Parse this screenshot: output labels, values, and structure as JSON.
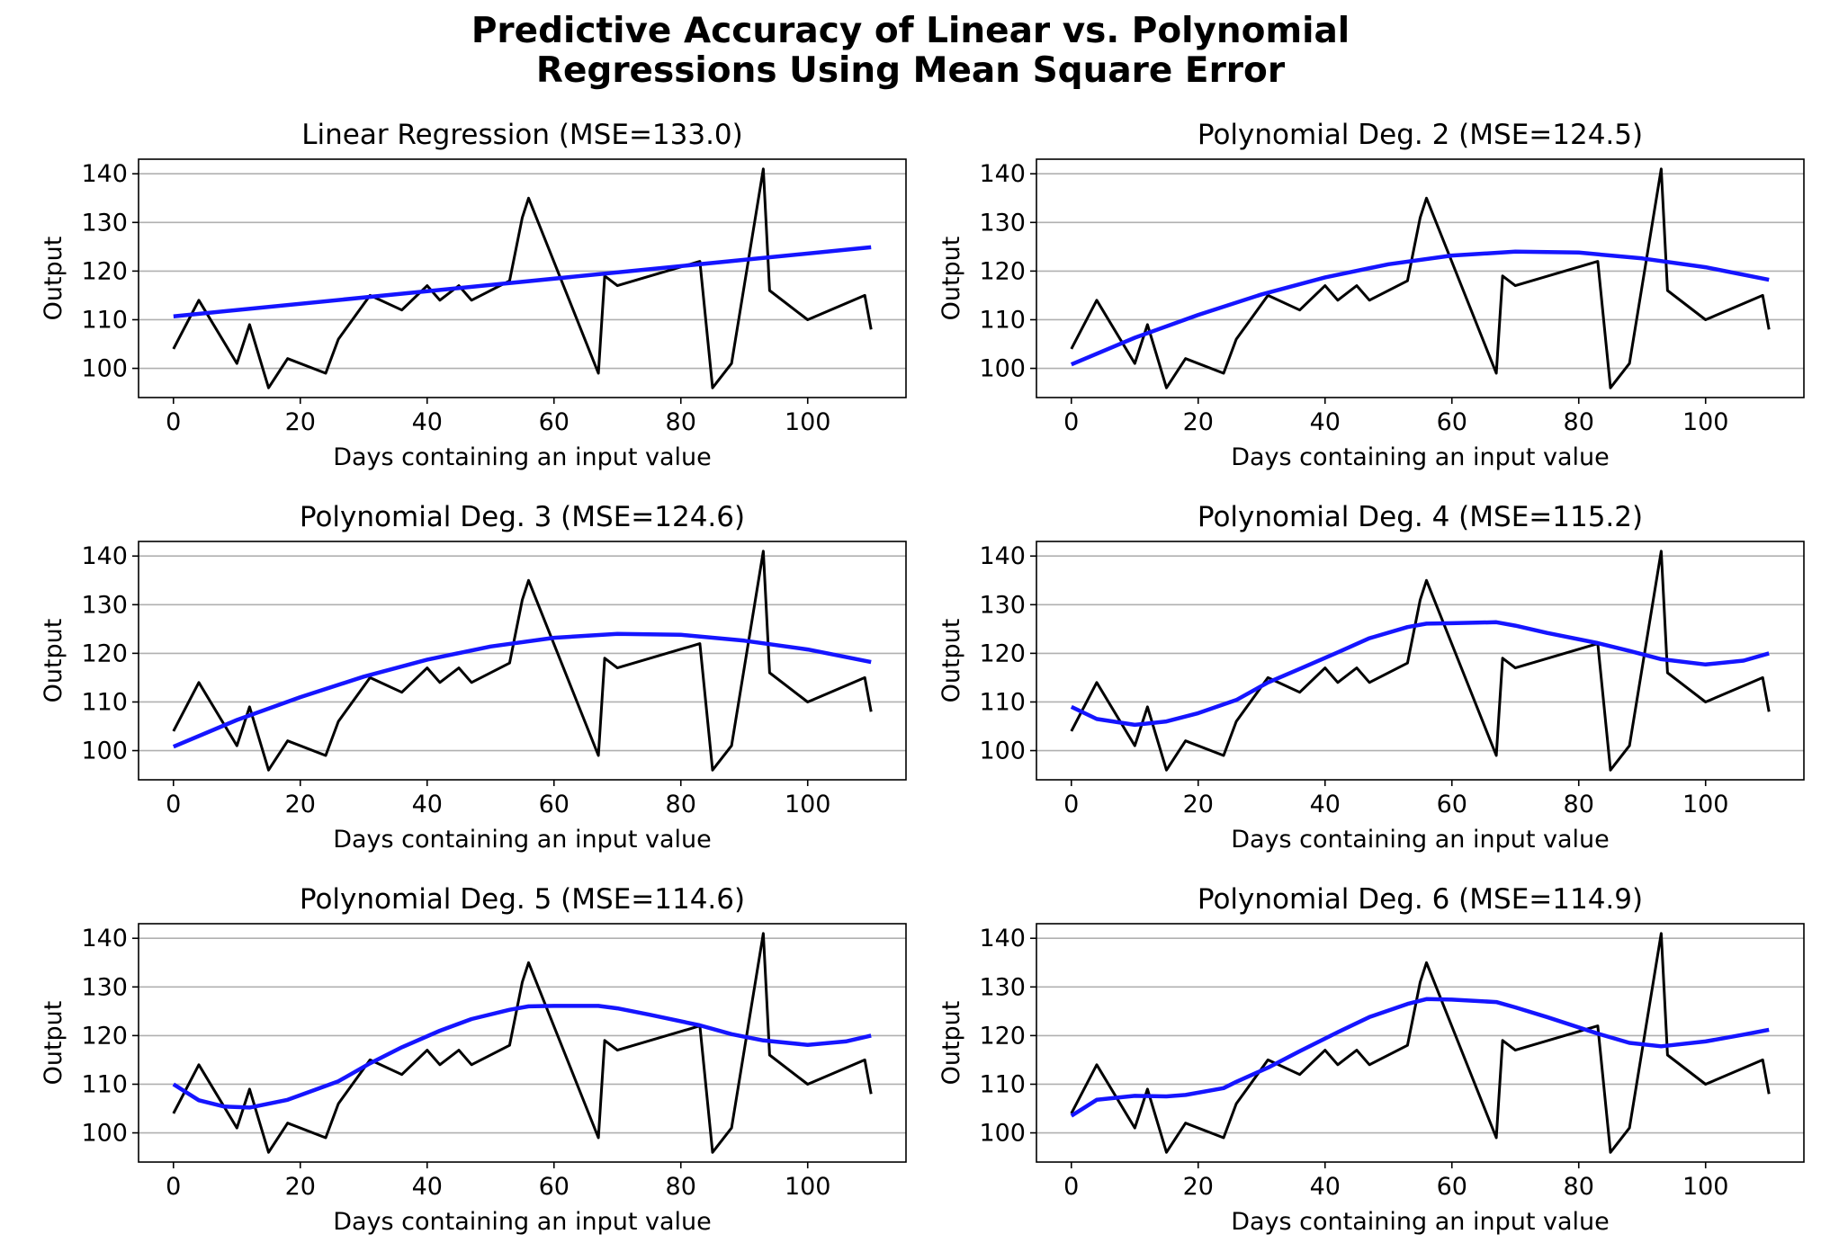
{
  "figure": {
    "suptitle_line1": "Predictive Accuracy of Linear vs. Polynomial",
    "suptitle_line2": "Regressions Using Mean Square Error"
  },
  "chart_data": [
    {
      "type": "line",
      "title": "Linear Regression (MSE=133.0)",
      "xlabel": "Days containing an input value",
      "ylabel": "Output",
      "xlim": [
        -5.5,
        115.5
      ],
      "ylim": [
        94,
        143
      ],
      "xticks": [
        0,
        20,
        40,
        60,
        80,
        100
      ],
      "yticks": [
        100,
        110,
        120,
        130,
        140
      ],
      "grid": "y",
      "series": [
        {
          "color": "#000000",
          "x": [
            0,
            4,
            10,
            12,
            15,
            18,
            24,
            26,
            31,
            36,
            40,
            42,
            45,
            47,
            53,
            55,
            56,
            67,
            68,
            70,
            83,
            85,
            88,
            93,
            94,
            100,
            109,
            110
          ],
          "y": [
            104,
            114,
            101,
            109,
            96,
            102,
            99,
            106,
            115,
            112,
            117,
            114,
            117,
            114,
            118,
            131,
            135,
            99,
            119,
            117,
            122,
            96,
            101,
            141,
            116,
            110,
            115,
            108
          ]
        },
        {
          "color": "#1515ff",
          "x": [
            0,
            110
          ],
          "y": [
            110.7,
            124.9
          ]
        }
      ]
    },
    {
      "type": "line",
      "title": "Polynomial Deg. 2 (MSE=124.5)",
      "xlabel": "Days containing an input value",
      "ylabel": "Output",
      "xlim": [
        -5.5,
        115.5
      ],
      "ylim": [
        94,
        143
      ],
      "xticks": [
        0,
        20,
        40,
        60,
        80,
        100
      ],
      "yticks": [
        100,
        110,
        120,
        130,
        140
      ],
      "grid": "y",
      "series": [
        {
          "color": "#000000",
          "x": [
            0,
            4,
            10,
            12,
            15,
            18,
            24,
            26,
            31,
            36,
            40,
            42,
            45,
            47,
            53,
            55,
            56,
            67,
            68,
            70,
            83,
            85,
            88,
            93,
            94,
            100,
            109,
            110
          ],
          "y": [
            104,
            114,
            101,
            109,
            96,
            102,
            99,
            106,
            115,
            112,
            117,
            114,
            117,
            114,
            118,
            131,
            135,
            99,
            119,
            117,
            122,
            96,
            101,
            141,
            116,
            110,
            115,
            108
          ]
        },
        {
          "color": "#1515ff",
          "x": [
            0,
            10,
            20,
            30,
            40,
            50,
            60,
            70,
            80,
            90,
            100,
            110
          ],
          "y": [
            100.8,
            106.3,
            111.0,
            115.2,
            118.7,
            121.4,
            123.2,
            124.0,
            123.8,
            122.6,
            120.8,
            118.2
          ]
        }
      ]
    },
    {
      "type": "line",
      "title": "Polynomial Deg. 3 (MSE=124.6)",
      "xlabel": "Days containing an input value",
      "ylabel": "Output",
      "xlim": [
        -5.5,
        115.5
      ],
      "ylim": [
        94,
        143
      ],
      "xticks": [
        0,
        20,
        40,
        60,
        80,
        100
      ],
      "yticks": [
        100,
        110,
        120,
        130,
        140
      ],
      "grid": "y",
      "series": [
        {
          "color": "#000000",
          "x": [
            0,
            4,
            10,
            12,
            15,
            18,
            24,
            26,
            31,
            36,
            40,
            42,
            45,
            47,
            53,
            55,
            56,
            67,
            68,
            70,
            83,
            85,
            88,
            93,
            94,
            100,
            109,
            110
          ],
          "y": [
            104,
            114,
            101,
            109,
            96,
            102,
            99,
            106,
            115,
            112,
            117,
            114,
            117,
            114,
            118,
            131,
            135,
            99,
            119,
            117,
            122,
            96,
            101,
            141,
            116,
            110,
            115,
            108
          ]
        },
        {
          "color": "#1515ff",
          "x": [
            0,
            10,
            20,
            30,
            40,
            50,
            60,
            70,
            80,
            90,
            100,
            110
          ],
          "y": [
            100.8,
            106.3,
            111.0,
            115.2,
            118.7,
            121.4,
            123.2,
            124.0,
            123.8,
            122.6,
            120.8,
            118.2
          ]
        }
      ]
    },
    {
      "type": "line",
      "title": "Polynomial Deg. 4 (MSE=115.2)",
      "xlabel": "Days containing an input value",
      "ylabel": "Output",
      "xlim": [
        -5.5,
        115.5
      ],
      "ylim": [
        94,
        143
      ],
      "xticks": [
        0,
        20,
        40,
        60,
        80,
        100
      ],
      "yticks": [
        100,
        110,
        120,
        130,
        140
      ],
      "grid": "y",
      "series": [
        {
          "color": "#000000",
          "x": [
            0,
            4,
            10,
            12,
            15,
            18,
            24,
            26,
            31,
            36,
            40,
            42,
            45,
            47,
            53,
            55,
            56,
            67,
            68,
            70,
            83,
            85,
            88,
            93,
            94,
            100,
            109,
            110
          ],
          "y": [
            104,
            114,
            101,
            109,
            96,
            102,
            99,
            106,
            115,
            112,
            117,
            114,
            117,
            114,
            118,
            131,
            135,
            99,
            119,
            117,
            122,
            96,
            101,
            141,
            116,
            110,
            115,
            108
          ]
        },
        {
          "color": "#1515ff",
          "x": [
            0,
            4,
            10,
            15,
            20,
            26,
            31,
            36,
            42,
            47,
            53,
            56,
            60,
            67,
            70,
            75,
            83,
            88,
            93,
            100,
            106,
            110
          ],
          "y": [
            109,
            106.5,
            105.3,
            106,
            107.7,
            110.4,
            114,
            116.8,
            120.2,
            123.1,
            125.4,
            126.1,
            126.2,
            126.4,
            125.7,
            124.2,
            122.1,
            120.5,
            118.8,
            117.7,
            118.5,
            120.0
          ]
        }
      ]
    },
    {
      "type": "line",
      "title": "Polynomial Deg. 5 (MSE=114.6)",
      "xlabel": "Days containing an input value",
      "ylabel": "Output",
      "xlim": [
        -5.5,
        115.5
      ],
      "ylim": [
        94,
        143
      ],
      "xticks": [
        0,
        20,
        40,
        60,
        80,
        100
      ],
      "yticks": [
        100,
        110,
        120,
        130,
        140
      ],
      "grid": "y",
      "series": [
        {
          "color": "#000000",
          "x": [
            0,
            4,
            10,
            12,
            15,
            18,
            24,
            26,
            31,
            36,
            40,
            42,
            45,
            47,
            53,
            55,
            56,
            67,
            68,
            70,
            83,
            85,
            88,
            93,
            94,
            100,
            109,
            110
          ],
          "y": [
            104,
            114,
            101,
            109,
            96,
            102,
            99,
            106,
            115,
            112,
            117,
            114,
            117,
            114,
            118,
            131,
            135,
            99,
            119,
            117,
            122,
            96,
            101,
            141,
            116,
            110,
            115,
            108
          ]
        },
        {
          "color": "#1515ff",
          "x": [
            0,
            4,
            8,
            12,
            18,
            26,
            31,
            36,
            42,
            47,
            53,
            56,
            60,
            67,
            70,
            75,
            83,
            88,
            93,
            100,
            106,
            110
          ],
          "y": [
            110,
            106.7,
            105.4,
            105.2,
            106.8,
            110.6,
            114.3,
            117.6,
            121,
            123.4,
            125.3,
            126,
            126.1,
            126.1,
            125.6,
            124.3,
            122.1,
            120.3,
            119,
            118.1,
            118.8,
            120.0
          ]
        }
      ]
    },
    {
      "type": "line",
      "title": "Polynomial Deg. 6 (MSE=114.9)",
      "xlabel": "Days containing an input value",
      "ylabel": "Output",
      "xlim": [
        -5.5,
        115.5
      ],
      "ylim": [
        94,
        143
      ],
      "xticks": [
        0,
        20,
        40,
        60,
        80,
        100
      ],
      "yticks": [
        100,
        110,
        120,
        130,
        140
      ],
      "grid": "y",
      "series": [
        {
          "color": "#000000",
          "x": [
            0,
            4,
            10,
            12,
            15,
            18,
            24,
            26,
            31,
            36,
            40,
            42,
            45,
            47,
            53,
            55,
            56,
            67,
            68,
            70,
            83,
            85,
            88,
            93,
            94,
            100,
            109,
            110
          ],
          "y": [
            104,
            114,
            101,
            109,
            96,
            102,
            99,
            106,
            115,
            112,
            117,
            114,
            117,
            114,
            118,
            131,
            135,
            99,
            119,
            117,
            122,
            96,
            101,
            141,
            116,
            110,
            115,
            108
          ]
        },
        {
          "color": "#1515ff",
          "x": [
            0,
            4,
            10,
            15,
            18,
            24,
            26,
            31,
            36,
            42,
            47,
            53,
            56,
            60,
            67,
            70,
            75,
            83,
            88,
            93,
            100,
            106,
            110
          ],
          "y": [
            103.5,
            106.8,
            107.6,
            107.5,
            107.8,
            109.2,
            110.5,
            113.4,
            116.8,
            120.7,
            123.8,
            126.5,
            127.5,
            127.4,
            126.9,
            125.8,
            123.8,
            120.4,
            118.5,
            117.8,
            118.8,
            120.2,
            121.2
          ]
        }
      ]
    }
  ]
}
